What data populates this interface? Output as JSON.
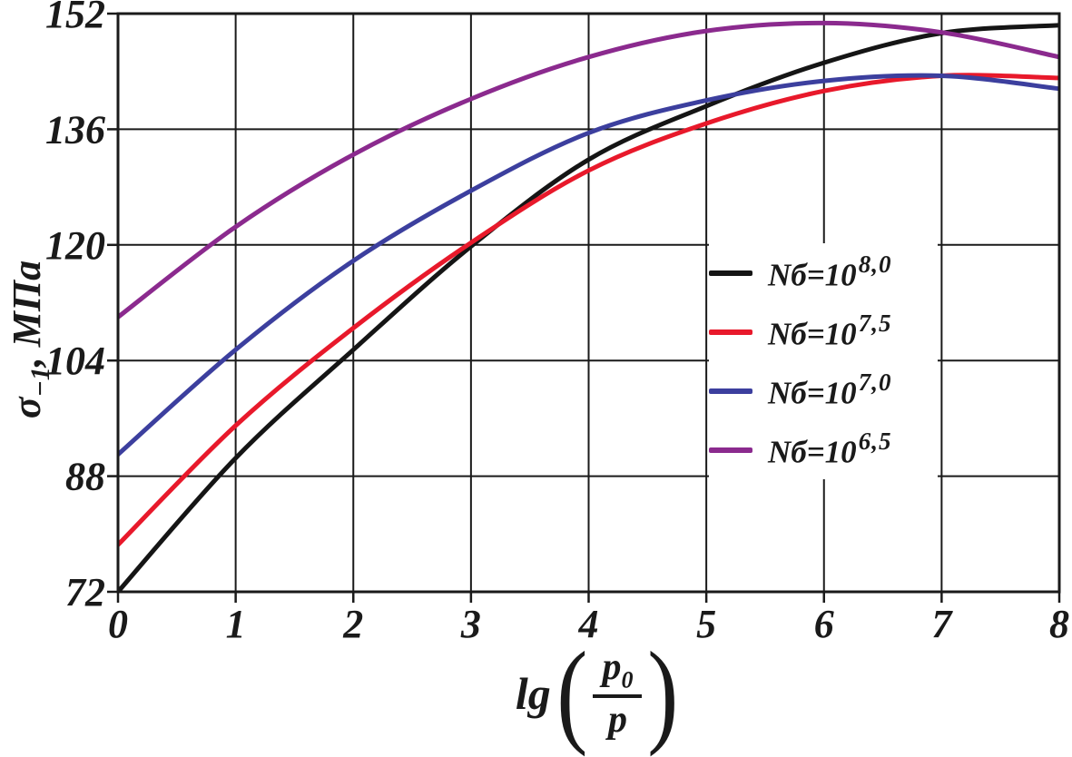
{
  "figure": {
    "background": "#ffffff",
    "axis_color": "#1a1a1a"
  },
  "axes": {
    "y_title": {
      "symbol": "σ",
      "subscript": "−1",
      "unit": ", МПа"
    },
    "x_title": {
      "function": "lg",
      "open_paren": "(",
      "numerator": "p",
      "numerator_sub": "0",
      "denominator": "p",
      "close_paren": ")"
    }
  },
  "chart_data": {
    "type": "line",
    "title": "",
    "xlabel": "lg(p0/p)",
    "ylabel": "σ−1, МПа",
    "x": [
      0,
      1,
      2,
      3,
      4,
      5,
      6,
      7,
      8
    ],
    "xlim": [
      0,
      8
    ],
    "ylim": [
      72,
      152
    ],
    "x_ticks": [
      0,
      1,
      2,
      3,
      4,
      5,
      6,
      7,
      8
    ],
    "y_ticks": [
      72,
      88,
      104,
      120,
      136,
      152
    ],
    "grid": true,
    "legend_position": "right-center",
    "series": [
      {
        "name": "Nб=10^8,0",
        "label_base": "Nб=10",
        "label_exp": "8,0",
        "color": "#151515",
        "values": [
          72,
          90.5,
          105.5,
          119.8,
          131.8,
          139.2,
          145.2,
          149.3,
          150.4
        ]
      },
      {
        "name": "Nб=10^7,5",
        "label_base": "Nб=10",
        "label_exp": "7,5",
        "color": "#e8192b",
        "values": [
          78.5,
          95,
          108.5,
          120.3,
          130.3,
          136.8,
          141.3,
          143.4,
          143.1
        ]
      },
      {
        "name": "Nб=10^7,0",
        "label_base": "Nб=10",
        "label_exp": "7,0",
        "color": "#3c3f9e",
        "values": [
          91,
          105.5,
          117.8,
          127.5,
          135.5,
          140,
          142.7,
          143.4,
          141.6
        ]
      },
      {
        "name": "Nб=10^6,5",
        "label_base": "Nб=10",
        "label_exp": "6,5",
        "color": "#8b2a8e",
        "values": [
          110,
          122.5,
          132.5,
          140.2,
          146,
          149.6,
          150.7,
          149.4,
          146
        ]
      }
    ]
  }
}
